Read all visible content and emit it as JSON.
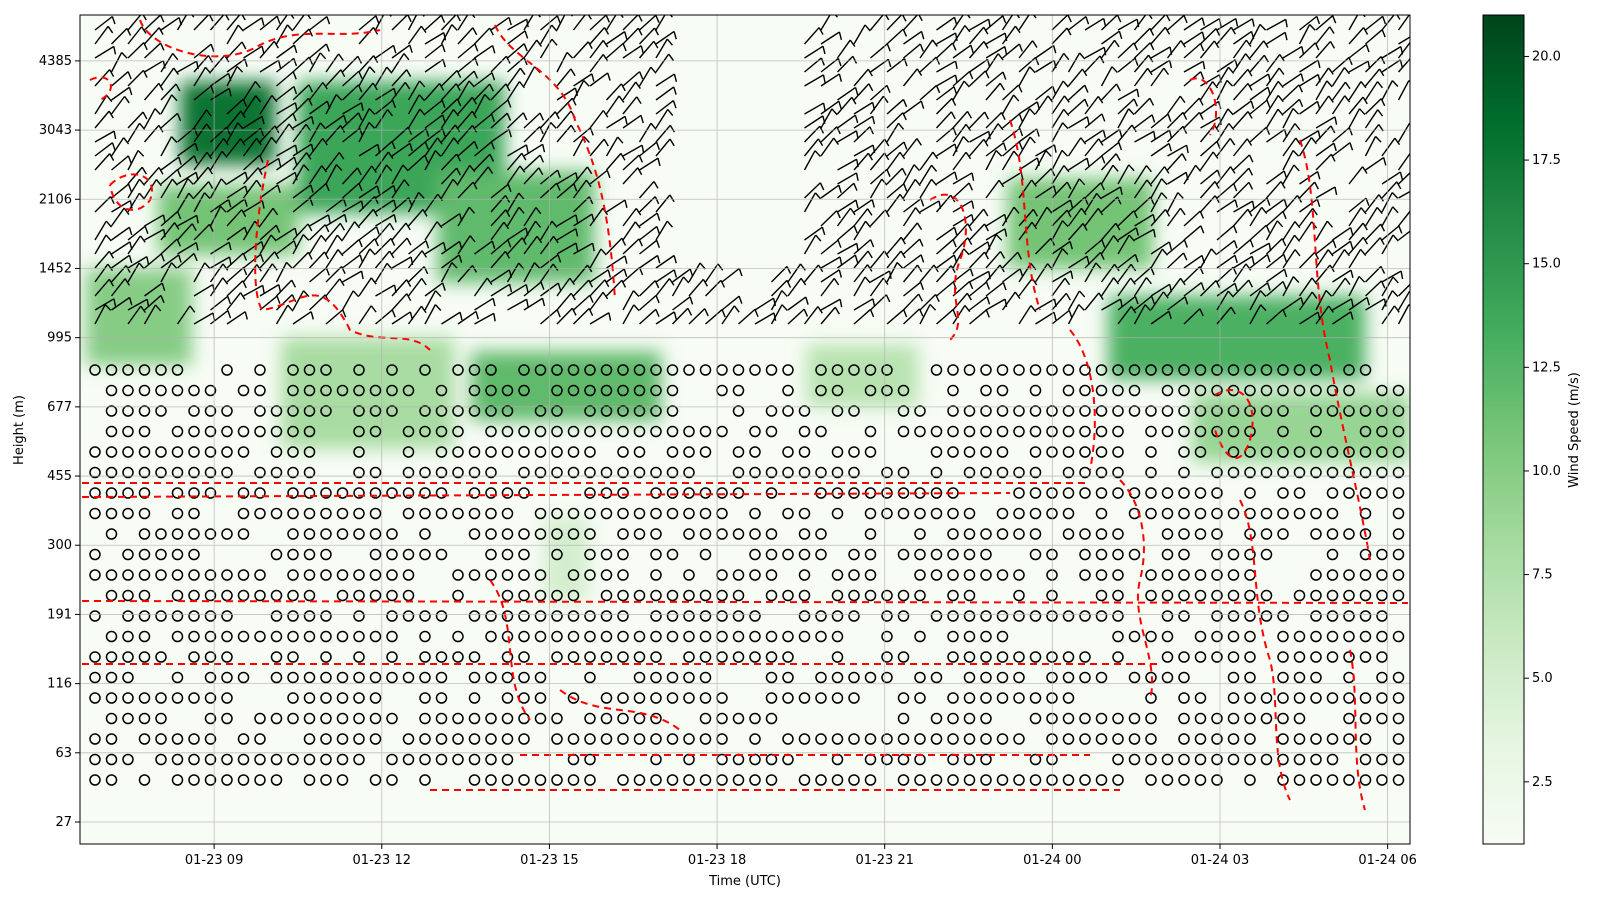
{
  "chart_data": {
    "type": "heatmap",
    "title": "",
    "xlabel": "Time (UTC)",
    "ylabel": "Height (m)",
    "x_ticks": [
      "01-23 09",
      "01-23 12",
      "01-23 15",
      "01-23 18",
      "01-23 21",
      "01-24 00",
      "01-24 03",
      "01-24 06"
    ],
    "x_range_hours": [
      6.6,
      30.4
    ],
    "y_ticks": [
      "27",
      "63",
      "116",
      "191",
      "300",
      "455",
      "677",
      "995",
      "1452",
      "2106",
      "3043",
      "4385"
    ],
    "grid": true,
    "colorbar": {
      "label": "Wind Speed (m/s)",
      "colormap": "Greens",
      "range": [
        1.0,
        21.0
      ],
      "ticks": [
        "2.5",
        "5.0",
        "7.5",
        "10.0",
        "12.5",
        "15.0",
        "17.5",
        "20.0"
      ]
    },
    "overlays": {
      "wind_barbs_color": "#000000",
      "calm_marker": "circle",
      "contour_color": "#ff0000",
      "contour_style": "dashed"
    },
    "wind_speed_regions": [
      {
        "x0": 8.4,
        "x1": 10.1,
        "y0": 4.75,
        "y1": 5.35,
        "speed": 18
      },
      {
        "x0": 10.5,
        "x1": 14.2,
        "y0": 4.4,
        "y1": 5.35,
        "speed": 14
      },
      {
        "x0": 13.0,
        "x1": 15.8,
        "y0": 3.9,
        "y1": 4.7,
        "speed": 12
      },
      {
        "x0": 8.0,
        "x1": 10.5,
        "y0": 4.1,
        "y1": 4.6,
        "speed": 11
      },
      {
        "x0": 6.7,
        "x1": 8.6,
        "y0": 3.3,
        "y1": 4.0,
        "speed": 10
      },
      {
        "x0": 10.2,
        "x1": 13.3,
        "y0": 2.7,
        "y1": 3.5,
        "speed": 8
      },
      {
        "x0": 13.6,
        "x1": 17.0,
        "y0": 2.9,
        "y1": 3.4,
        "speed": 12
      },
      {
        "x0": 23.2,
        "x1": 25.8,
        "y0": 4.0,
        "y1": 4.65,
        "speed": 11
      },
      {
        "x0": 25.0,
        "x1": 29.6,
        "y0": 3.2,
        "y1": 3.8,
        "speed": 13
      },
      {
        "x0": 26.5,
        "x1": 30.4,
        "y0": 2.6,
        "y1": 3.1,
        "speed": 9
      },
      {
        "x0": 19.6,
        "x1": 21.6,
        "y0": 3.0,
        "y1": 3.45,
        "speed": 7
      },
      {
        "x0": 14.9,
        "x1": 15.7,
        "y0": 1.6,
        "y1": 2.2,
        "speed": 5
      }
    ]
  }
}
